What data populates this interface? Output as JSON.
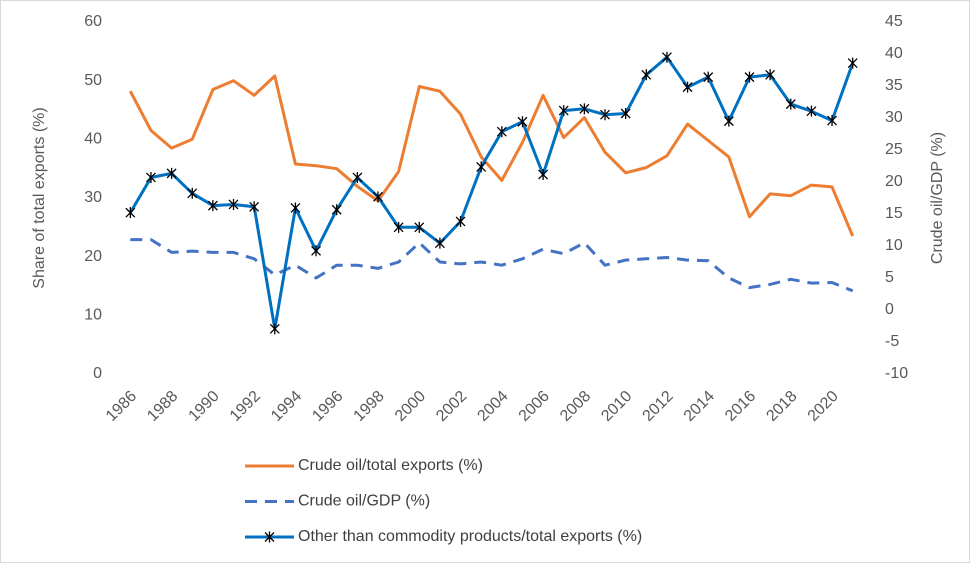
{
  "chart_data": {
    "type": "line",
    "y_label": "Share of total exports (%)",
    "y2_label": "Crude oil/GDP (%)",
    "categories": [
      "1986",
      null,
      "1988",
      null,
      "1990",
      null,
      "1992",
      null,
      "1994",
      null,
      "1996",
      null,
      "1998",
      null,
      "2000",
      null,
      "2002",
      null,
      "2004",
      null,
      "2006",
      null,
      "2008",
      null,
      "2010",
      null,
      "2012",
      null,
      "2014",
      null,
      "2016",
      null,
      "2018",
      null,
      "2020",
      null
    ],
    "ylim": [
      0,
      60
    ],
    "yticks": [
      0,
      10,
      20,
      30,
      40,
      50,
      60
    ],
    "y2lim": [
      -10,
      45
    ],
    "y2ticks": [
      -10,
      -5,
      0,
      5,
      10,
      15,
      20,
      25,
      30,
      35,
      40,
      45
    ],
    "legend": "bottom",
    "series": [
      {
        "name": "Crude oil/total exports (%)",
        "color": "#ed7d31",
        "linestyle": "solid",
        "values": [
          48.2,
          41.5,
          38.5,
          40,
          48.5,
          50,
          47.5,
          50.8,
          35.8,
          35.5,
          35,
          32,
          29.5,
          34.5,
          49,
          48.2,
          44.3,
          37,
          33,
          39.5,
          47.5,
          40.3,
          43.7,
          37.8,
          34.3,
          35.2,
          37.2,
          42.6,
          39.8,
          37,
          26.8,
          30.7,
          30.4,
          32.2,
          31.9,
          23.5
        ]
      },
      {
        "name": "Crude oil/GDP (%)",
        "color": "#4472c4",
        "linestyle": "dashed",
        "axis": "y2",
        "values": [
          11,
          11,
          9,
          9.2,
          9,
          9,
          8,
          5.5,
          7,
          5,
          7,
          7,
          6.5,
          7.5,
          10.5,
          7.5,
          7.2,
          7.5,
          7,
          8,
          9.5,
          8.8,
          10.5,
          7,
          7.8,
          8,
          8.2,
          7.8,
          7.7,
          5,
          3.5,
          4,
          4.8,
          4.2,
          4.3,
          3
        ]
      },
      {
        "name": "Other than commodity products/total exports (%)",
        "color": "#0070c0",
        "linestyle": "solid",
        "marker": "asterisk",
        "values": [
          27.5,
          33.5,
          34.2,
          30.8,
          28.7,
          28.9,
          28.5,
          7.7,
          28.3,
          21,
          28,
          33.5,
          30.2,
          25,
          25,
          22.3,
          26,
          35.3,
          41.3,
          43,
          34,
          44.9,
          45.2,
          44.2,
          44.4,
          51,
          54,
          48.9,
          50.6,
          43.1,
          50.6,
          51,
          46,
          44.8,
          43.2,
          53
        ]
      }
    ]
  }
}
